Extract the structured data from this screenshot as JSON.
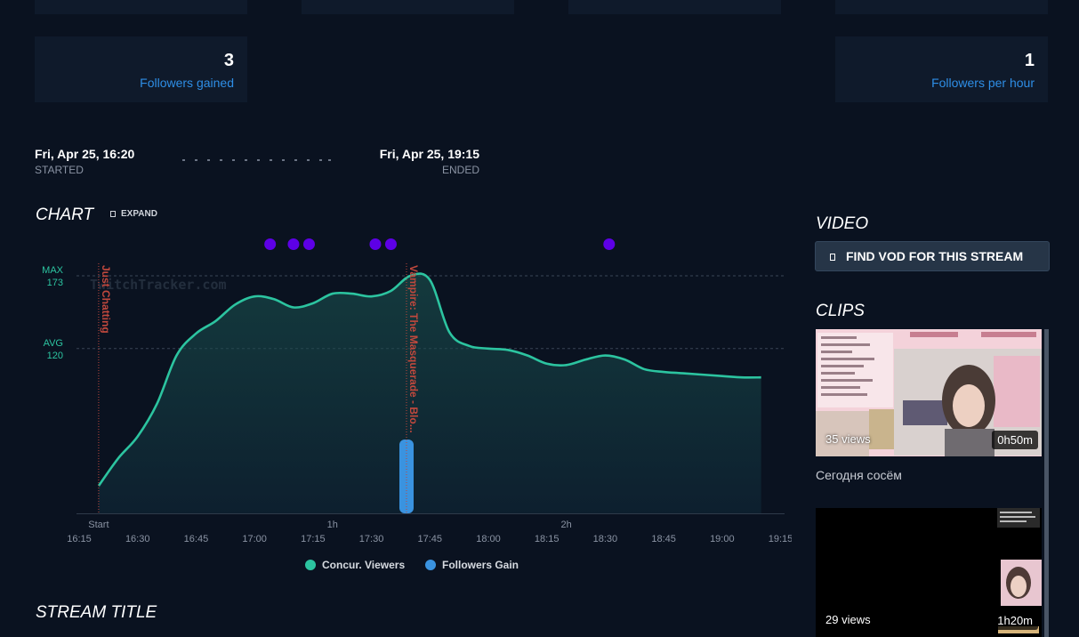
{
  "stats": [
    {
      "value": "3",
      "label": "Followers gained"
    },
    {
      "value": "1",
      "label": "Followers per hour"
    }
  ],
  "timeline": {
    "started_value": "Fri, Apr 25, 16:20",
    "started_label": "STARTED",
    "ended_value": "Fri, Apr 25, 19:15",
    "ended_label": "ENDED"
  },
  "chart_section": {
    "title": "CHART",
    "expand_label": "EXPAND"
  },
  "video_section": {
    "title": "VIDEO",
    "find_vod_label": "FIND VOD FOR THIS STREAM"
  },
  "clips_section": {
    "title": "CLIPS",
    "clips": [
      {
        "views": "35 views",
        "duration": "0h50m",
        "title": "Сегодня сосём"
      },
      {
        "views": "29 views",
        "duration": "1h20m"
      }
    ]
  },
  "stream_title_section": {
    "title": "STREAM TITLE"
  },
  "chart_data": {
    "type": "line",
    "watermark": "TwitchTracker.com",
    "x_ticks": [
      "16:15",
      "16:30",
      "16:45",
      "17:00",
      "17:15",
      "17:30",
      "17:45",
      "18:00",
      "18:15",
      "18:30",
      "18:45",
      "19:00",
      "19:15"
    ],
    "duration_ticks": [
      "Start",
      "1h",
      "2h"
    ],
    "reference_lines": [
      {
        "label": "MAX",
        "value": 173
      },
      {
        "label": "AVG",
        "value": 120
      }
    ],
    "ylim": [
      0,
      173
    ],
    "series": [
      {
        "name": "Concur. Viewers",
        "color": "#2cc4a0",
        "points": [
          [
            "16:20",
            20
          ],
          [
            "16:25",
            40
          ],
          [
            "16:30",
            56
          ],
          [
            "16:35",
            80
          ],
          [
            "16:40",
            115
          ],
          [
            "16:45",
            131
          ],
          [
            "16:50",
            140
          ],
          [
            "16:55",
            152
          ],
          [
            "17:00",
            158
          ],
          [
            "17:05",
            156
          ],
          [
            "17:10",
            150
          ],
          [
            "17:15",
            153
          ],
          [
            "17:20",
            160
          ],
          [
            "17:25",
            160
          ],
          [
            "17:30",
            158
          ],
          [
            "17:35",
            162
          ],
          [
            "17:40",
            173
          ],
          [
            "17:45",
            170
          ],
          [
            "17:50",
            132
          ],
          [
            "17:55",
            122
          ],
          [
            "18:00",
            120
          ],
          [
            "18:05",
            119
          ],
          [
            "18:10",
            115
          ],
          [
            "18:15",
            109
          ],
          [
            "18:20",
            108
          ],
          [
            "18:25",
            112
          ],
          [
            "18:30",
            115
          ],
          [
            "18:35",
            112
          ],
          [
            "18:40",
            105
          ],
          [
            "18:45",
            103
          ],
          [
            "18:50",
            102
          ],
          [
            "19:00",
            100
          ],
          [
            "19:05",
            99
          ],
          [
            "19:10",
            99
          ]
        ]
      },
      {
        "name": "Followers Gain",
        "color": "#3a93e0",
        "bars": [
          [
            "17:39",
            3
          ]
        ],
        "bar_max": 3
      }
    ],
    "events": [
      "17:04",
      "17:10",
      "17:14",
      "17:31",
      "17:35",
      "18:31"
    ],
    "game_markers": [
      {
        "time": "16:20",
        "label": "Just Chatting"
      },
      {
        "time": "17:39",
        "label": "Vampire: The Masquerade - Blo..."
      }
    ]
  }
}
